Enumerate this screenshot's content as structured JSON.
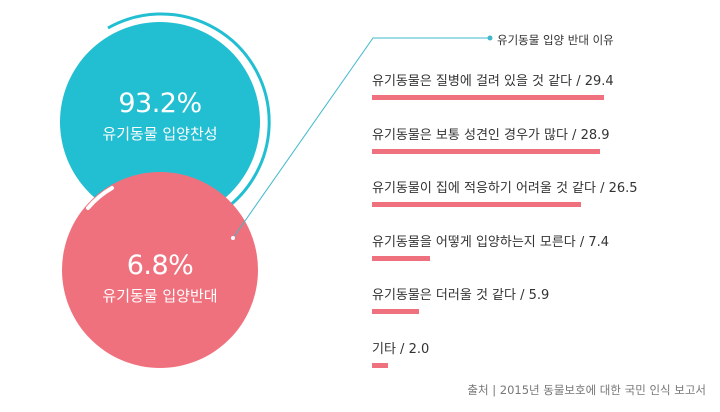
{
  "colors": {
    "teal": "#22BFD2",
    "pink": "#F0717E",
    "connector": "#3FB8CC"
  },
  "circles": {
    "support": {
      "percent": "93.2%",
      "label": "유기동물 입양찬성"
    },
    "oppose": {
      "percent": "6.8%",
      "label": "유기동물 입양반대"
    }
  },
  "chart_data": {
    "type": "bar",
    "title": "유기동물 입양 반대 이유",
    "categories": [
      "유기동물은 질병에 걸려 있을 것 같다",
      "유기동물은 보통 성견인 경우가 많다",
      "유기동물이 집에 적응하기 어려울 것 같다",
      "유기동물을 어떻게 입양하는지 모른다",
      "유기동물은 더러울 것 같다",
      "기타"
    ],
    "labels": [
      "유기동물은 질병에 걸려 있을 것 같다 / 29.4",
      "유기동물은 보통 성견인 경우가 많다 / 28.9",
      "유기동물이 집에 적응하기 어려울 것 같다 / 26.5",
      "유기동물을 어떻게 입양하는지 모른다 / 7.4",
      "유기동물은 더러울 것 같다 / 5.9",
      "기타 / 2.0"
    ],
    "values": [
      29.4,
      28.9,
      26.5,
      7.4,
      5.9,
      2.0
    ],
    "overall": {
      "support": 93.2,
      "oppose": 6.8
    }
  },
  "source": "출처 | 2015년 동물보호에 대한 국민 인식 보고서"
}
